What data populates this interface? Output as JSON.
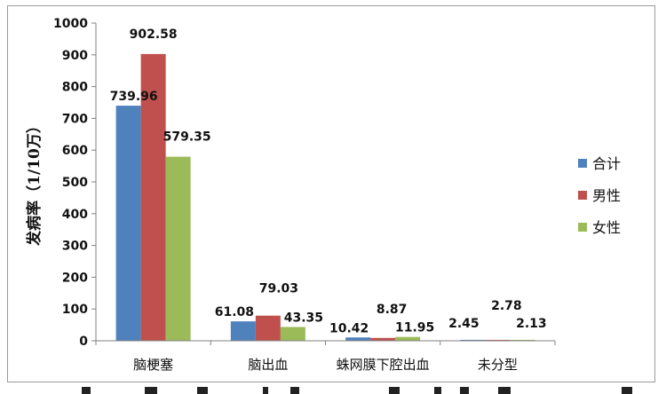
{
  "chart_data": {
    "type": "bar",
    "title": "",
    "xlabel": "",
    "ylabel": "发病率（1/10万）",
    "ylim": [
      0,
      1000
    ],
    "yticks": [
      0,
      100,
      200,
      300,
      400,
      500,
      600,
      700,
      800,
      900,
      1000
    ],
    "categories": [
      "脑梗塞",
      "脑出血",
      "蛛网膜下腔出血",
      "未分型"
    ],
    "series": [
      {
        "name": "合计",
        "color": "#4F81BD",
        "values": [
          739.96,
          61.08,
          10.42,
          2.45
        ]
      },
      {
        "name": "男性",
        "color": "#C0504D",
        "values": [
          902.58,
          79.03,
          8.87,
          2.78
        ]
      },
      {
        "name": "女性",
        "color": "#9BBB59",
        "values": [
          579.35,
          43.35,
          11.95,
          2.13
        ]
      }
    ],
    "data_labels": [
      [
        "739.96",
        "902.58",
        "579.35"
      ],
      [
        "61.08",
        "79.03",
        "43.35"
      ],
      [
        "10.42",
        "8.87",
        "11.95"
      ],
      [
        "2.45",
        "2.78",
        "2.13"
      ]
    ],
    "grid": false,
    "legend_position": "right"
  }
}
